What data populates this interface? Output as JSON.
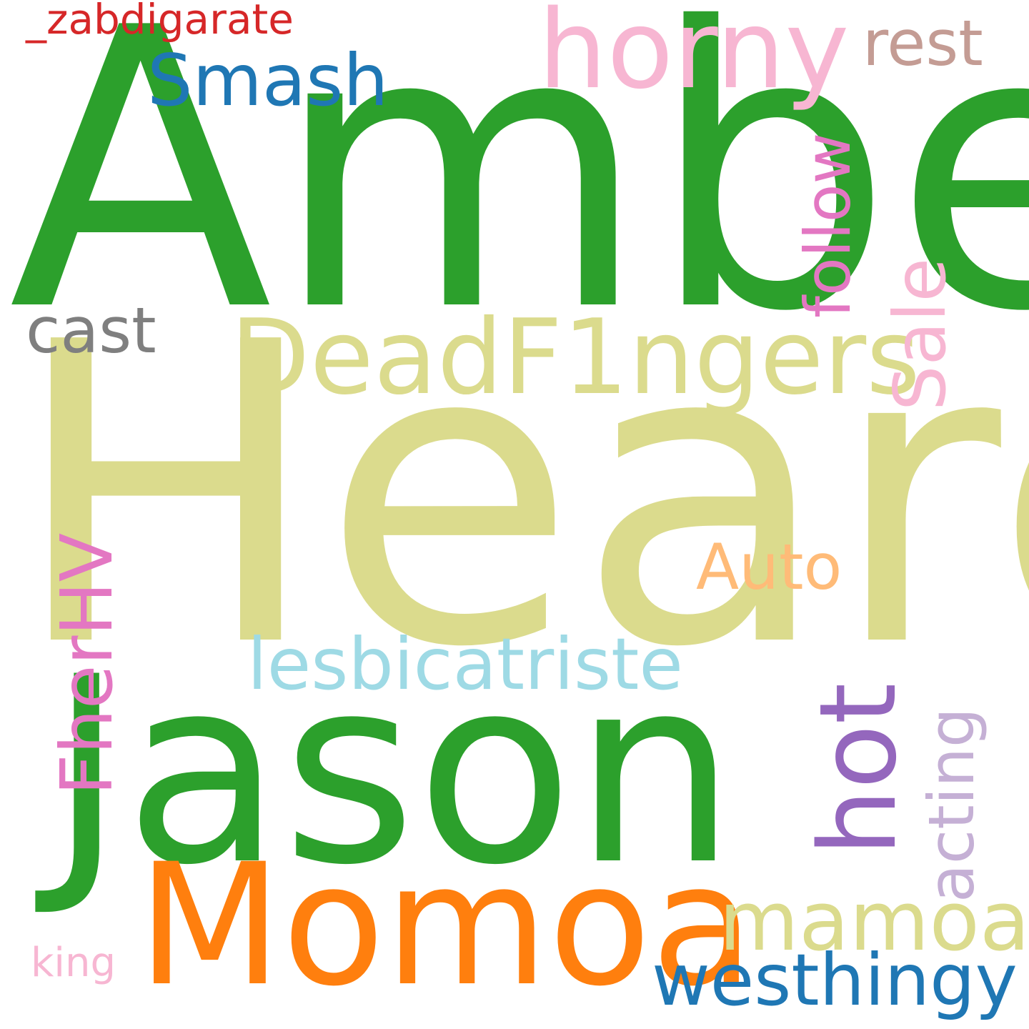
{
  "words": {
    "amber": {
      "text": "Amber",
      "color": "#2ca02c"
    },
    "heard": {
      "text": "Heard",
      "color": "#dbdb8d"
    },
    "jason": {
      "text": "Jason",
      "color": "#2ca02c"
    },
    "momoa": {
      "text": "Momoa",
      "color": "#ff7f0e"
    },
    "deadf1ngers": {
      "text": "DeadF1ngers",
      "color": "#dbdb8d"
    },
    "horny": {
      "text": "horny",
      "color": "#f7b6d2"
    },
    "smash": {
      "text": "Smash",
      "color": "#1f77b4"
    },
    "rest": {
      "text": "rest",
      "color": "#c49c94"
    },
    "zabdigarate": {
      "text": "_zabdigarate",
      "color": "#d62728"
    },
    "cast": {
      "text": "cast",
      "color": "#7f7f7f"
    },
    "follow": {
      "text": "follow",
      "color": "#e377c2"
    },
    "sale": {
      "text": "Sale",
      "color": "#f7b6d2"
    },
    "auto": {
      "text": "Auto",
      "color": "#ffbb78"
    },
    "lesbicatriste": {
      "text": "lesbicatriste",
      "color": "#9edae5"
    },
    "fherhv": {
      "text": "FherHV",
      "color": "#e377c2"
    },
    "hot": {
      "text": "hot",
      "color": "#9467bd"
    },
    "acting": {
      "text": "acting",
      "color": "#c5b0d5"
    },
    "mamoa": {
      "text": "mamoa",
      "color": "#dbdb8d"
    },
    "westhingy": {
      "text": "westhingy",
      "color": "#1f77b4"
    },
    "king": {
      "text": "king",
      "color": "#f7b6d2"
    }
  }
}
